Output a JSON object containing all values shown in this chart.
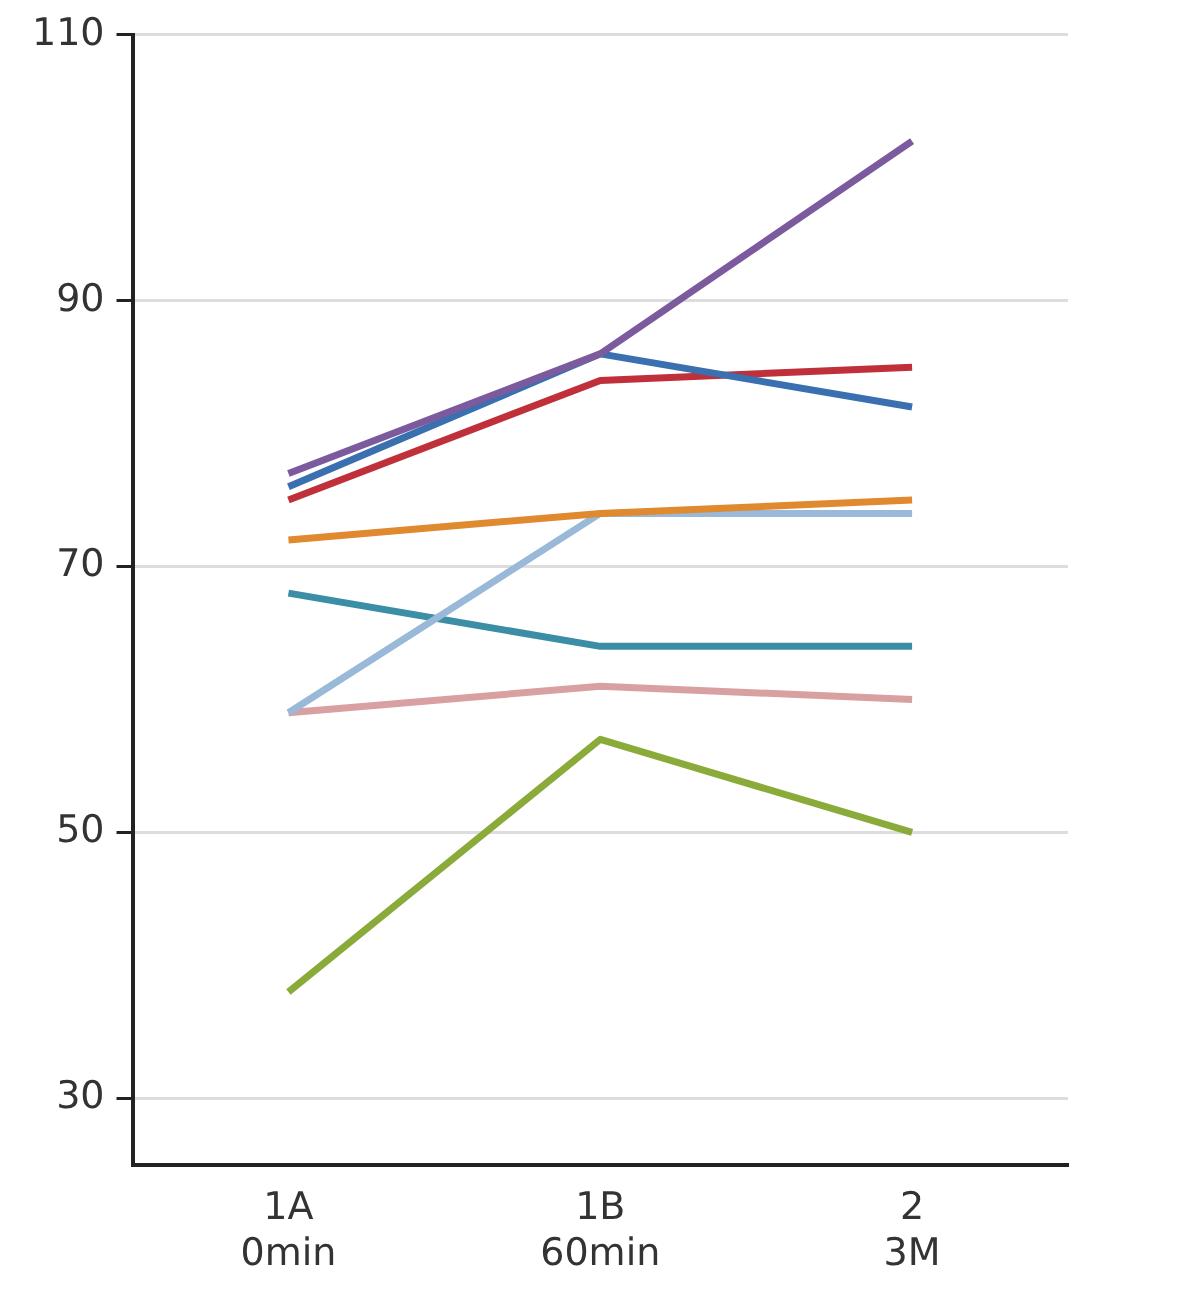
{
  "chart_data": {
    "type": "line",
    "categories": [
      "1A\n0min",
      "1B\n60min",
      "2\n3M"
    ],
    "series": [
      {
        "color": "#7b5a9e",
        "values": [
          77,
          86,
          102
        ]
      },
      {
        "color": "#3a6fb0",
        "values": [
          76,
          86,
          82
        ]
      },
      {
        "color": "#c0303a",
        "values": [
          75,
          84,
          85
        ]
      },
      {
        "color": "#e08a30",
        "values": [
          72,
          74,
          75
        ]
      },
      {
        "color": "#9ab8d8",
        "values": [
          59,
          74,
          74
        ]
      },
      {
        "color": "#3b8ea5",
        "values": [
          68,
          64,
          64
        ]
      },
      {
        "color": "#d8a0a0",
        "values": [
          59,
          61,
          60
        ]
      },
      {
        "color": "#8aaa3a",
        "values": [
          38,
          57,
          50
        ]
      }
    ],
    "ylim": [
      25,
      110
    ],
    "yticks": [
      30,
      50,
      70,
      90,
      110
    ],
    "grid": "y",
    "legend": false,
    "marker": "none",
    "line_style": "solid"
  }
}
